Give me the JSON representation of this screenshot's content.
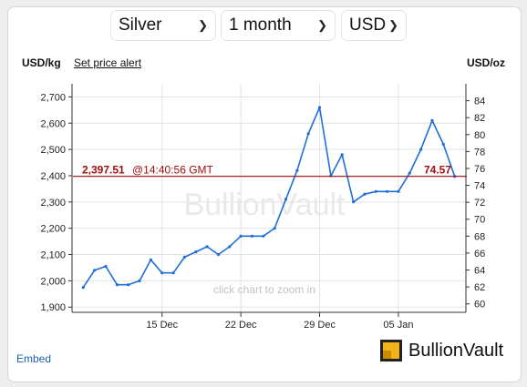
{
  "controls": {
    "metal": "Silver",
    "period": "1 month",
    "currency": "USD"
  },
  "header": {
    "left_unit": "USD/kg",
    "alert_link": "Set price alert",
    "right_unit": "USD/oz"
  },
  "overlay": {
    "watermark": "BullionVault",
    "zoom_hint": "click chart to zoom in"
  },
  "footer": {
    "embed": "Embed",
    "brand": "BullionVault"
  },
  "colors": {
    "series": "#1f6fd6",
    "price_line": "#a01010",
    "grid": "#e2e2e2"
  },
  "chart_data": {
    "type": "line",
    "series": [
      {
        "values": [
          {
            "x": "2023-12-08",
            "y": 1975
          },
          {
            "x": "2023-12-09",
            "y": 2040
          },
          {
            "x": "2023-12-10",
            "y": 2055
          },
          {
            "x": "2023-12-11",
            "y": 1985
          },
          {
            "x": "2023-12-12",
            "y": 1985
          },
          {
            "x": "2023-12-13",
            "y": 2000
          },
          {
            "x": "2023-12-14",
            "y": 2080
          },
          {
            "x": "2023-12-15",
            "y": 2030
          },
          {
            "x": "2023-12-16",
            "y": 2030
          },
          {
            "x": "2023-12-17",
            "y": 2090
          },
          {
            "x": "2023-12-18",
            "y": 2110
          },
          {
            "x": "2023-12-19",
            "y": 2130
          },
          {
            "x": "2023-12-20",
            "y": 2100
          },
          {
            "x": "2023-12-21",
            "y": 2130
          },
          {
            "x": "2023-12-22",
            "y": 2170
          },
          {
            "x": "2023-12-23",
            "y": 2170
          },
          {
            "x": "2023-12-24",
            "y": 2170
          },
          {
            "x": "2023-12-25",
            "y": 2200
          },
          {
            "x": "2023-12-26",
            "y": 2310
          },
          {
            "x": "2023-12-27",
            "y": 2420
          },
          {
            "x": "2023-12-28",
            "y": 2560
          },
          {
            "x": "2023-12-29",
            "y": 2660
          },
          {
            "x": "2023-12-30",
            "y": 2400
          },
          {
            "x": "2023-12-31",
            "y": 2480
          },
          {
            "x": "2024-01-01",
            "y": 2300
          },
          {
            "x": "2024-01-02",
            "y": 2330
          },
          {
            "x": "2024-01-03",
            "y": 2340
          },
          {
            "x": "2024-01-04",
            "y": 2340
          },
          {
            "x": "2024-01-05",
            "y": 2340
          },
          {
            "x": "2024-01-06",
            "y": 2410
          },
          {
            "x": "2024-01-07",
            "y": 2500
          },
          {
            "x": "2024-01-08",
            "y": 2610
          },
          {
            "x": "2024-01-09",
            "y": 2520
          },
          {
            "x": "2024-01-10",
            "y": 2397.51
          }
        ]
      }
    ],
    "current_price": {
      "left_value": "2,397.51",
      "time": "@14:40:56 GMT",
      "right_value": "74.57"
    },
    "ylim_left": [
      1880,
      2750
    ],
    "ylim_right": [
      59,
      86
    ],
    "yticks_left": [
      "1,900",
      "2,000",
      "2,100",
      "2,200",
      "2,300",
      "2,400",
      "2,500",
      "2,600",
      "2,700"
    ],
    "yticks_right": [
      "60",
      "62",
      "64",
      "66",
      "68",
      "70",
      "72",
      "74",
      "76",
      "78",
      "80",
      "82",
      "84"
    ],
    "xticks": [
      {
        "date": "2023-12-15",
        "label": "15 Dec"
      },
      {
        "date": "2023-12-22",
        "label": "22 Dec"
      },
      {
        "date": "2023-12-29",
        "label": "29 Dec"
      },
      {
        "date": "2024-01-05",
        "label": "05 Jan"
      }
    ],
    "grid": true
  }
}
